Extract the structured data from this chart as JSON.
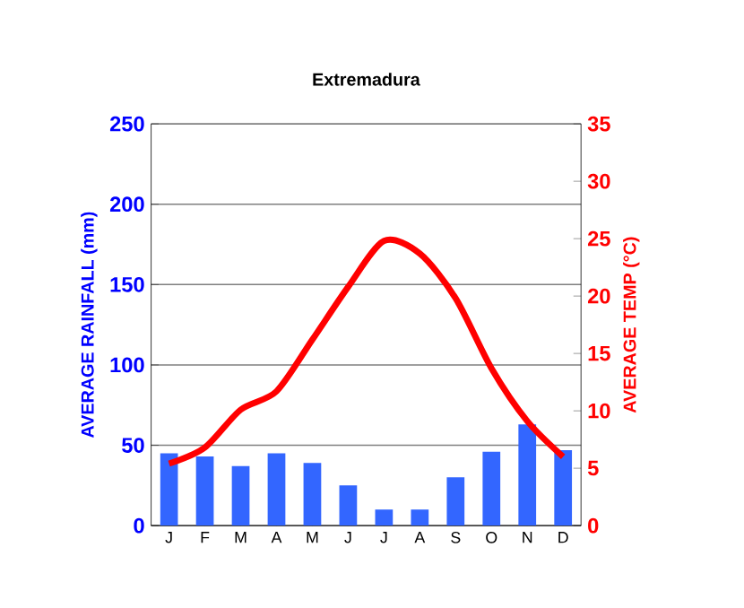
{
  "chart_data": {
    "type": "bar",
    "title": "Extremadura",
    "categories": [
      "J",
      "F",
      "M",
      "A",
      "M",
      "J",
      "J",
      "A",
      "S",
      "O",
      "N",
      "D"
    ],
    "series": [
      {
        "name": null,
        "color": "#3366ff",
        "values": [
          45,
          43,
          37,
          45,
          39,
          25,
          10,
          10,
          30,
          46,
          63,
          47
        ]
      },
      {
        "name": null,
        "type": "line",
        "axis": "y2",
        "color": "#ff0000",
        "values": [
          5.4,
          6.8,
          10.1,
          11.7,
          16.2,
          20.8,
          24.8,
          23.7,
          19.8,
          13.7,
          9.1,
          6.0
        ]
      }
    ],
    "ylabel": "AVERAGE RAINFALL (mm)",
    "y2label": "AVERAGE TEMP (°C)",
    "ylim": [
      0,
      250
    ],
    "yticks": [
      0,
      50,
      100,
      150,
      200,
      250
    ],
    "y2lim": [
      0,
      35
    ],
    "y2ticks": [
      0,
      5,
      10,
      15,
      20,
      25,
      30,
      35
    ],
    "grid": "y"
  }
}
